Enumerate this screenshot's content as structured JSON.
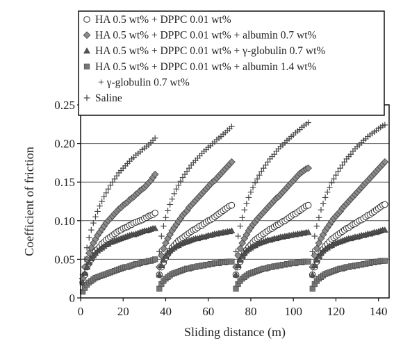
{
  "chart_data": {
    "type": "scatter",
    "xlabel": "Sliding distance (m)",
    "ylabel": "Coefficient of friction",
    "xlim": [
      0,
      145
    ],
    "ylim": [
      0,
      0.25
    ],
    "xticks": [
      "0",
      "20",
      "40",
      "60",
      "80",
      "100",
      "120",
      "140"
    ],
    "yticks": [
      "0",
      "0.05",
      "0.10",
      "0.15",
      "0.20",
      "0.25"
    ],
    "grid": "horizontal",
    "legend_position": "top",
    "cycle_starts": [
      0,
      36,
      72,
      108
    ],
    "cycle_length": 36,
    "series": [
      {
        "name": "HA 0.5 wt% + DPPC 0.01 wt%",
        "marker": "circle",
        "fill": "#ffffff",
        "x": [
          1,
          2,
          3,
          4,
          5,
          6,
          7,
          8,
          9,
          10,
          11,
          12,
          13,
          14,
          15,
          16,
          17,
          18,
          19,
          20,
          21,
          22,
          23,
          24,
          25,
          26,
          27,
          28,
          29,
          30,
          31,
          32,
          33,
          34,
          35
        ],
        "cycles": [
          [
            0.02,
            0.03,
            0.04,
            0.045,
            0.05,
            0.055,
            0.06,
            0.063,
            0.066,
            0.07,
            0.072,
            0.075,
            0.077,
            0.079,
            0.081,
            0.083,
            0.085,
            0.087,
            0.088,
            0.09,
            0.091,
            0.092,
            0.094,
            0.095,
            0.097,
            0.098,
            0.099,
            0.1,
            0.101,
            0.103,
            0.104,
            0.106,
            0.107,
            0.108,
            0.11
          ],
          [
            0.03,
            0.04,
            0.046,
            0.052,
            0.057,
            0.061,
            0.065,
            0.068,
            0.071,
            0.074,
            0.076,
            0.078,
            0.08,
            0.082,
            0.084,
            0.086,
            0.088,
            0.089,
            0.091,
            0.093,
            0.094,
            0.096,
            0.098,
            0.1,
            0.101,
            0.103,
            0.105,
            0.107,
            0.109,
            0.111,
            0.113,
            0.115,
            0.117,
            0.119,
            0.12
          ],
          [
            0.03,
            0.04,
            0.047,
            0.053,
            0.058,
            0.062,
            0.066,
            0.069,
            0.072,
            0.075,
            0.077,
            0.079,
            0.081,
            0.083,
            0.085,
            0.087,
            0.089,
            0.09,
            0.092,
            0.094,
            0.095,
            0.097,
            0.099,
            0.1,
            0.102,
            0.104,
            0.106,
            0.108,
            0.109,
            0.111,
            0.113,
            0.115,
            0.117,
            0.119,
            0.12
          ],
          [
            0.03,
            0.04,
            0.047,
            0.053,
            0.058,
            0.063,
            0.067,
            0.07,
            0.073,
            0.076,
            0.078,
            0.08,
            0.082,
            0.084,
            0.086,
            0.088,
            0.09,
            0.091,
            0.093,
            0.095,
            0.096,
            0.098,
            0.1,
            0.101,
            0.103,
            0.105,
            0.107,
            0.108,
            0.11,
            0.112,
            0.114,
            0.116,
            0.118,
            0.12,
            0.121
          ]
        ]
      },
      {
        "name": "HA 0.5 wt% + DPPC 0.01 wt% + albumin 0.7 wt%",
        "marker": "diamond",
        "fill": "#8c8c8c",
        "x": [
          1,
          2,
          3,
          4,
          5,
          6,
          7,
          8,
          9,
          10,
          11,
          12,
          13,
          14,
          15,
          16,
          17,
          18,
          19,
          20,
          21,
          22,
          23,
          24,
          25,
          26,
          27,
          28,
          29,
          30,
          31,
          32,
          33,
          34,
          35
        ],
        "cycles": [
          [
            0.025,
            0.04,
            0.05,
            0.058,
            0.065,
            0.071,
            0.076,
            0.081,
            0.085,
            0.089,
            0.093,
            0.097,
            0.1,
            0.103,
            0.106,
            0.109,
            0.112,
            0.115,
            0.117,
            0.12,
            0.122,
            0.124,
            0.127,
            0.129,
            0.131,
            0.134,
            0.136,
            0.139,
            0.141,
            0.143,
            0.146,
            0.149,
            0.152,
            0.156,
            0.16
          ],
          [
            0.04,
            0.055,
            0.064,
            0.071,
            0.077,
            0.082,
            0.087,
            0.091,
            0.095,
            0.099,
            0.103,
            0.107,
            0.11,
            0.113,
            0.117,
            0.12,
            0.123,
            0.126,
            0.129,
            0.132,
            0.135,
            0.138,
            0.141,
            0.144,
            0.147,
            0.15,
            0.152,
            0.155,
            0.158,
            0.161,
            0.164,
            0.167,
            0.17,
            0.173,
            0.176
          ],
          [
            0.04,
            0.055,
            0.064,
            0.071,
            0.077,
            0.082,
            0.087,
            0.091,
            0.095,
            0.098,
            0.102,
            0.105,
            0.108,
            0.111,
            0.114,
            0.117,
            0.12,
            0.123,
            0.126,
            0.129,
            0.131,
            0.134,
            0.137,
            0.14,
            0.143,
            0.146,
            0.149,
            0.152,
            0.155,
            0.158,
            0.161,
            0.163,
            0.165,
            0.167,
            0.168
          ],
          [
            0.04,
            0.055,
            0.064,
            0.071,
            0.077,
            0.082,
            0.087,
            0.091,
            0.095,
            0.099,
            0.103,
            0.106,
            0.109,
            0.112,
            0.116,
            0.119,
            0.122,
            0.125,
            0.128,
            0.131,
            0.134,
            0.137,
            0.14,
            0.143,
            0.146,
            0.149,
            0.152,
            0.155,
            0.158,
            0.161,
            0.164,
            0.167,
            0.17,
            0.173,
            0.176
          ]
        ]
      },
      {
        "name": "HA 0.5 wt% + DPPC 0.01 wt% + γ-globulin 0.7 wt%",
        "marker": "triangle",
        "fill": "#555555",
        "x": [
          1,
          2,
          3,
          4,
          5,
          6,
          7,
          8,
          9,
          10,
          11,
          12,
          13,
          14,
          15,
          16,
          17,
          18,
          19,
          20,
          21,
          22,
          23,
          24,
          25,
          26,
          27,
          28,
          29,
          30,
          31,
          32,
          33,
          34,
          35
        ],
        "cycles": [
          [
            0.02,
            0.032,
            0.04,
            0.046,
            0.051,
            0.055,
            0.058,
            0.061,
            0.063,
            0.065,
            0.067,
            0.069,
            0.07,
            0.072,
            0.073,
            0.074,
            0.075,
            0.076,
            0.077,
            0.078,
            0.079,
            0.08,
            0.081,
            0.082,
            0.082,
            0.083,
            0.084,
            0.085,
            0.086,
            0.087,
            0.087,
            0.088,
            0.089,
            0.09,
            0.09
          ],
          [
            0.03,
            0.042,
            0.049,
            0.054,
            0.058,
            0.061,
            0.063,
            0.065,
            0.067,
            0.068,
            0.07,
            0.071,
            0.072,
            0.073,
            0.074,
            0.075,
            0.076,
            0.077,
            0.077,
            0.078,
            0.079,
            0.079,
            0.08,
            0.081,
            0.081,
            0.082,
            0.083,
            0.083,
            0.084,
            0.084,
            0.085,
            0.085,
            0.086,
            0.086,
            0.087
          ],
          [
            0.03,
            0.042,
            0.049,
            0.054,
            0.058,
            0.061,
            0.063,
            0.065,
            0.067,
            0.068,
            0.07,
            0.071,
            0.072,
            0.073,
            0.074,
            0.075,
            0.075,
            0.076,
            0.077,
            0.077,
            0.078,
            0.079,
            0.079,
            0.08,
            0.08,
            0.081,
            0.081,
            0.082,
            0.082,
            0.083,
            0.083,
            0.084,
            0.084,
            0.085,
            0.085
          ],
          [
            0.03,
            0.042,
            0.049,
            0.054,
            0.058,
            0.061,
            0.063,
            0.065,
            0.067,
            0.068,
            0.07,
            0.071,
            0.072,
            0.073,
            0.074,
            0.075,
            0.076,
            0.077,
            0.077,
            0.078,
            0.079,
            0.079,
            0.08,
            0.081,
            0.081,
            0.082,
            0.083,
            0.083,
            0.084,
            0.085,
            0.085,
            0.086,
            0.087,
            0.088,
            0.088
          ]
        ]
      },
      {
        "name": "HA 0.5 wt% + DPPC 0.01 wt% + albumin 1.4 wt% + γ-globulin 0.7 wt%",
        "name_lines": [
          "HA 0.5 wt% + DPPC 0.01 wt% + albumin 1.4 wt%",
          "+ γ-globulin 0.7 wt%"
        ],
        "marker": "square",
        "fill": "#777777",
        "x": [
          1,
          2,
          3,
          4,
          5,
          6,
          7,
          8,
          9,
          10,
          11,
          12,
          13,
          14,
          15,
          16,
          17,
          18,
          19,
          20,
          21,
          22,
          23,
          24,
          25,
          26,
          27,
          28,
          29,
          30,
          31,
          32,
          33,
          34,
          35
        ],
        "cycles": [
          [
            0.008,
            0.013,
            0.017,
            0.02,
            0.022,
            0.024,
            0.026,
            0.027,
            0.028,
            0.029,
            0.03,
            0.031,
            0.032,
            0.033,
            0.034,
            0.035,
            0.036,
            0.037,
            0.038,
            0.039,
            0.04,
            0.04,
            0.041,
            0.042,
            0.043,
            0.044,
            0.044,
            0.045,
            0.046,
            0.046,
            0.047,
            0.048,
            0.048,
            0.049,
            0.05
          ],
          [
            0.012,
            0.018,
            0.022,
            0.025,
            0.027,
            0.029,
            0.031,
            0.032,
            0.033,
            0.034,
            0.035,
            0.036,
            0.037,
            0.038,
            0.038,
            0.039,
            0.04,
            0.04,
            0.041,
            0.041,
            0.042,
            0.042,
            0.043,
            0.043,
            0.044,
            0.044,
            0.045,
            0.045,
            0.045,
            0.046,
            0.046,
            0.046,
            0.047,
            0.047,
            0.047
          ],
          [
            0.012,
            0.018,
            0.022,
            0.025,
            0.027,
            0.029,
            0.031,
            0.032,
            0.033,
            0.034,
            0.035,
            0.036,
            0.037,
            0.038,
            0.038,
            0.039,
            0.04,
            0.04,
            0.041,
            0.041,
            0.042,
            0.042,
            0.043,
            0.043,
            0.044,
            0.044,
            0.045,
            0.045,
            0.045,
            0.046,
            0.046,
            0.046,
            0.047,
            0.047,
            0.047
          ],
          [
            0.012,
            0.018,
            0.022,
            0.025,
            0.027,
            0.029,
            0.031,
            0.032,
            0.033,
            0.034,
            0.035,
            0.036,
            0.037,
            0.038,
            0.038,
            0.039,
            0.04,
            0.04,
            0.041,
            0.041,
            0.042,
            0.042,
            0.043,
            0.043,
            0.044,
            0.044,
            0.045,
            0.045,
            0.046,
            0.046,
            0.047,
            0.047,
            0.048,
            0.048,
            0.048
          ]
        ]
      },
      {
        "name": "Saline",
        "marker": "plus",
        "fill": "#444444",
        "x": [
          1,
          2,
          3,
          4,
          5,
          6,
          7,
          8,
          9,
          10,
          11,
          12,
          13,
          14,
          15,
          16,
          17,
          18,
          19,
          20,
          21,
          22,
          23,
          24,
          25,
          26,
          27,
          28,
          29,
          30,
          31,
          32,
          33,
          34,
          35
        ],
        "cycles": [
          [
            0.03,
            0.05,
            0.065,
            0.078,
            0.088,
            0.097,
            0.105,
            0.112,
            0.119,
            0.125,
            0.131,
            0.136,
            0.141,
            0.146,
            0.15,
            0.154,
            0.158,
            0.162,
            0.165,
            0.168,
            0.171,
            0.174,
            0.177,
            0.18,
            0.182,
            0.185,
            0.187,
            0.189,
            0.192,
            0.194,
            0.196,
            0.198,
            0.201,
            0.204,
            0.207
          ],
          [
            0.06,
            0.08,
            0.093,
            0.104,
            0.113,
            0.121,
            0.128,
            0.135,
            0.141,
            0.146,
            0.151,
            0.156,
            0.16,
            0.164,
            0.168,
            0.172,
            0.175,
            0.178,
            0.181,
            0.184,
            0.187,
            0.19,
            0.192,
            0.195,
            0.197,
            0.2,
            0.202,
            0.205,
            0.207,
            0.209,
            0.212,
            0.214,
            0.217,
            0.219,
            0.222
          ],
          [
            0.06,
            0.08,
            0.093,
            0.104,
            0.114,
            0.122,
            0.13,
            0.137,
            0.143,
            0.149,
            0.154,
            0.159,
            0.164,
            0.168,
            0.172,
            0.176,
            0.18,
            0.183,
            0.186,
            0.19,
            0.193,
            0.196,
            0.198,
            0.201,
            0.204,
            0.206,
            0.209,
            0.211,
            0.214,
            0.216,
            0.218,
            0.221,
            0.223,
            0.225,
            0.227
          ],
          [
            0.06,
            0.08,
            0.093,
            0.104,
            0.114,
            0.122,
            0.13,
            0.137,
            0.143,
            0.149,
            0.154,
            0.159,
            0.164,
            0.168,
            0.172,
            0.176,
            0.18,
            0.183,
            0.186,
            0.19,
            0.193,
            0.196,
            0.198,
            0.201,
            0.204,
            0.206,
            0.209,
            0.211,
            0.213,
            0.215,
            0.217,
            0.219,
            0.221,
            0.223,
            0.224
          ]
        ]
      }
    ]
  }
}
